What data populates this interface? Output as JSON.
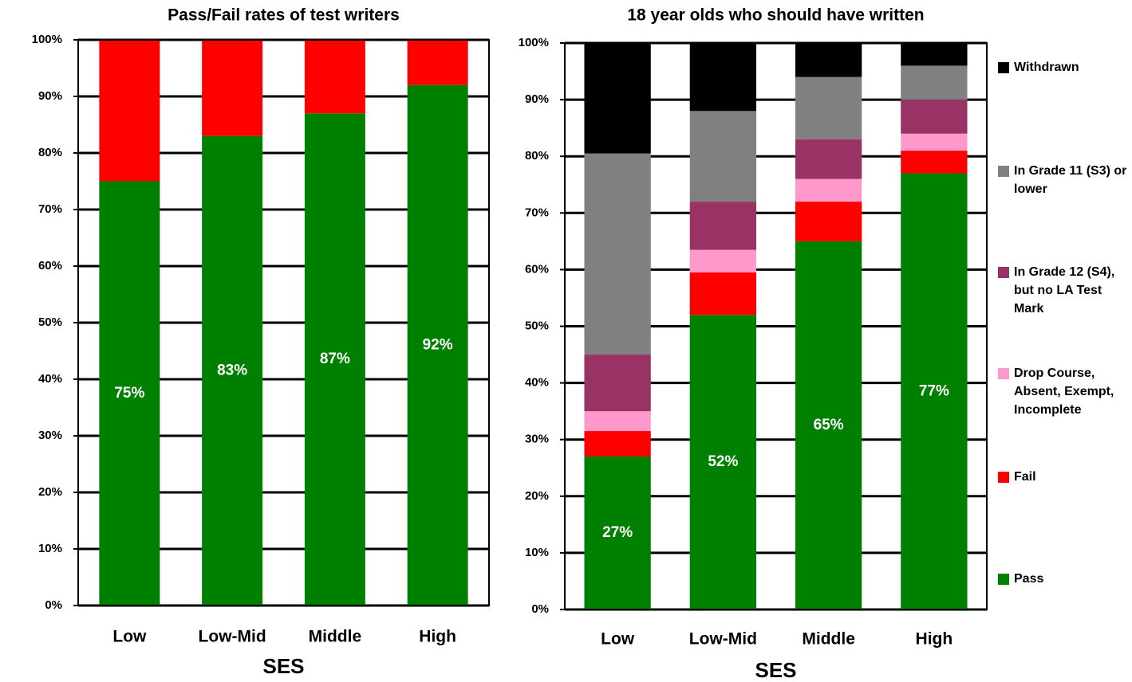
{
  "chart_data": [
    {
      "type": "stacked_bar",
      "title": "Pass/Fail rates of test writers",
      "x_label": "SES",
      "categories": [
        "Low",
        "Low-Mid",
        "Middle",
        "High"
      ],
      "series": [
        {
          "name": "Pass",
          "color": "#008000",
          "values": [
            75,
            83,
            87,
            92
          ],
          "value_labels": [
            "75%",
            "83%",
            "87%",
            "92%"
          ]
        },
        {
          "name": "Fail",
          "color": "#ff0000",
          "values": [
            25,
            17,
            13,
            8
          ]
        }
      ],
      "ylim": [
        0,
        100
      ],
      "yticks": [
        {
          "value": 0,
          "label": "0%"
        },
        {
          "value": 10,
          "label": "10%"
        },
        {
          "value": 20,
          "label": "20%"
        },
        {
          "value": 30,
          "label": "30%"
        },
        {
          "value": 40,
          "label": "40%"
        },
        {
          "value": 50,
          "label": "50%"
        },
        {
          "value": 60,
          "label": "60%"
        },
        {
          "value": 70,
          "label": "70%"
        },
        {
          "value": 80,
          "label": "80%"
        },
        {
          "value": 90,
          "label": "90%"
        },
        {
          "value": 100,
          "label": "100%"
        }
      ],
      "grid": true
    },
    {
      "type": "stacked_bar",
      "title": "18 year olds who should have written",
      "x_label": "SES",
      "categories": [
        "Low",
        "Low-Mid",
        "Middle",
        "High"
      ],
      "series": [
        {
          "name": "Pass",
          "color": "#008000",
          "values": [
            27,
            52,
            65,
            77
          ],
          "value_labels": [
            "27%",
            "52%",
            "65%",
            "77%"
          ]
        },
        {
          "name": "Fail",
          "color": "#ff0000",
          "values": [
            4.5,
            7.5,
            7,
            4
          ]
        },
        {
          "name": "Drop Course, Absent, Exempt, Incomplete",
          "color": "#ff99cc",
          "values": [
            3.5,
            4,
            4,
            3
          ]
        },
        {
          "name": "In Grade 12 (S4), but no LA Test Mark",
          "color": "#993366",
          "values": [
            10,
            8.5,
            7,
            6
          ]
        },
        {
          "name": "In Grade 11 (S3) or lower",
          "color": "#808080",
          "values": [
            35.5,
            16,
            11,
            6
          ]
        },
        {
          "name": "Withdrawn",
          "color": "#000000",
          "values": [
            19.5,
            12,
            6,
            4
          ]
        }
      ],
      "ylim": [
        0,
        100
      ],
      "yticks": [
        {
          "value": 0,
          "label": "0%"
        },
        {
          "value": 10,
          "label": "10%"
        },
        {
          "value": 20,
          "label": "20%"
        },
        {
          "value": 30,
          "label": "30%"
        },
        {
          "value": 40,
          "label": "40%"
        },
        {
          "value": 50,
          "label": "50%"
        },
        {
          "value": 60,
          "label": "60%"
        },
        {
          "value": 70,
          "label": "70%"
        },
        {
          "value": 80,
          "label": "80%"
        },
        {
          "value": 90,
          "label": "90%"
        },
        {
          "value": 100,
          "label": "100%"
        }
      ],
      "grid": true,
      "legend": "right"
    }
  ]
}
